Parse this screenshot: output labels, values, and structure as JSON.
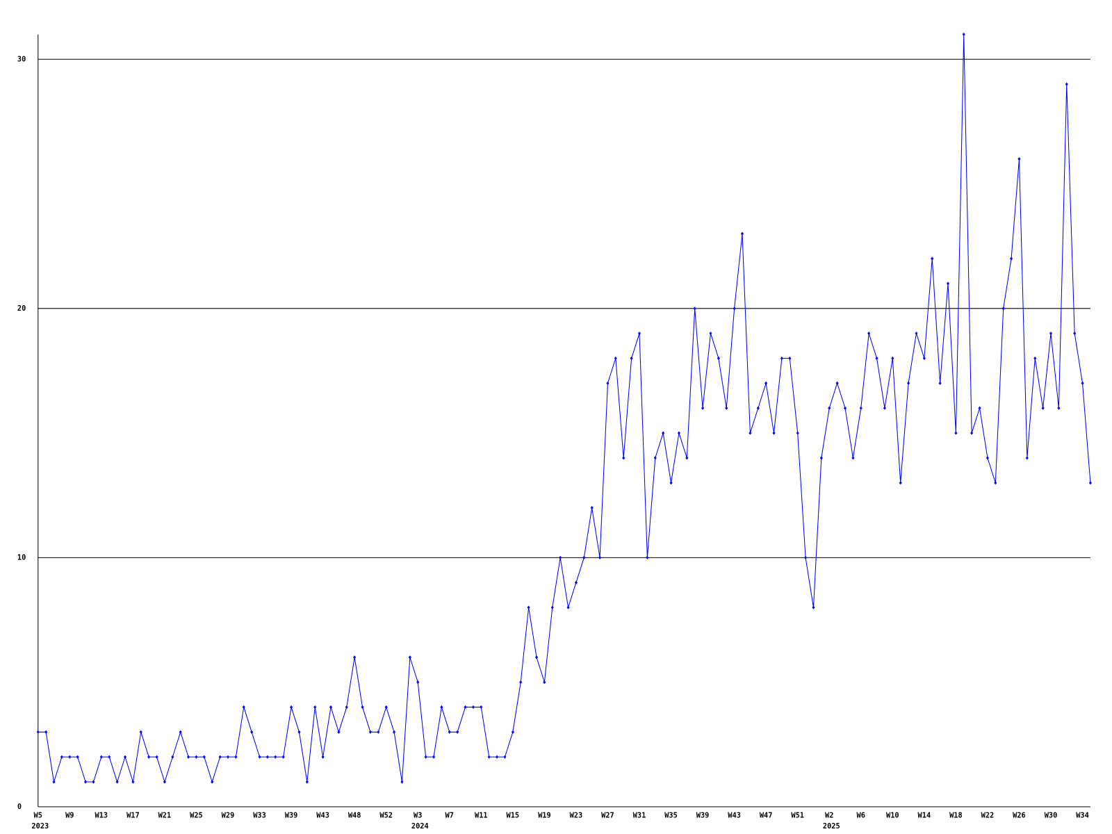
{
  "chart_data": {
    "type": "line",
    "categories": [
      "W5",
      null,
      null,
      null,
      "W9",
      null,
      null,
      null,
      "W13",
      null,
      null,
      null,
      "W17",
      null,
      null,
      null,
      "W21",
      null,
      null,
      null,
      "W25",
      null,
      null,
      null,
      "W29",
      null,
      null,
      null,
      "W33",
      null,
      null,
      null,
      "W39",
      null,
      null,
      null,
      "W43",
      null,
      null,
      null,
      "W48",
      null,
      null,
      null,
      "W52",
      null,
      null,
      null,
      "W3",
      null,
      null,
      null,
      "W7",
      null,
      null,
      null,
      "W11",
      null,
      null,
      null,
      "W15",
      null,
      null,
      null,
      "W19",
      null,
      null,
      null,
      "W23",
      null,
      null,
      null,
      "W27",
      null,
      null,
      null,
      "W31",
      null,
      null,
      null,
      "W35",
      null,
      null,
      null,
      "W39",
      null,
      null,
      null,
      "W43",
      null,
      null,
      null,
      "W47",
      null,
      null,
      null,
      "W51",
      null,
      null,
      null,
      "W2",
      null,
      null,
      null,
      "W6",
      null,
      null,
      null,
      "W10",
      null,
      null,
      null,
      "W14",
      null,
      null,
      null,
      "W18",
      null,
      null,
      null,
      "W22",
      null,
      null,
      null,
      "W26",
      null,
      null,
      null,
      "W30",
      null,
      null,
      null,
      "W34",
      null
    ],
    "category_years": [
      "2023",
      null,
      null,
      null,
      null,
      null,
      null,
      null,
      null,
      null,
      null,
      null,
      null,
      null,
      null,
      null,
      null,
      null,
      null,
      null,
      null,
      null,
      null,
      null,
      null,
      null,
      null,
      null,
      null,
      null,
      null,
      null,
      null,
      null,
      null,
      null,
      null,
      null,
      null,
      null,
      null,
      null,
      null,
      null,
      null,
      null,
      null,
      null,
      "2024",
      null,
      null,
      null,
      null,
      null,
      null,
      null,
      null,
      null,
      null,
      null,
      null,
      null,
      null,
      null,
      null,
      null,
      null,
      null,
      null,
      null,
      null,
      null,
      null,
      null,
      null,
      null,
      null,
      null,
      null,
      null,
      null,
      null,
      null,
      null,
      null,
      null,
      null,
      null,
      null,
      null,
      null,
      null,
      null,
      null,
      null,
      null,
      null,
      null,
      null,
      null,
      "2025",
      null,
      null,
      null,
      null,
      null,
      null,
      null,
      null,
      null,
      null,
      null,
      null,
      null,
      null,
      null,
      null,
      null,
      null,
      null,
      null,
      null,
      null,
      null,
      null,
      null,
      null,
      null,
      null,
      null,
      null,
      null,
      null,
      null
    ],
    "values": [
      3,
      3,
      1,
      2,
      2,
      2,
      1,
      1,
      2,
      2,
      1,
      2,
      1,
      3,
      2,
      2,
      1,
      2,
      3,
      2,
      2,
      2,
      1,
      2,
      2,
      2,
      4,
      3,
      2,
      2,
      2,
      2,
      4,
      3,
      1,
      4,
      2,
      4,
      3,
      4,
      6,
      4,
      3,
      3,
      4,
      3,
      1,
      6,
      5,
      2,
      2,
      4,
      3,
      3,
      4,
      4,
      4,
      2,
      2,
      2,
      3,
      5,
      8,
      6,
      5,
      8,
      10,
      8,
      9,
      10,
      12,
      10,
      17,
      18,
      14,
      18,
      19,
      10,
      14,
      15,
      13,
      15,
      14,
      20,
      16,
      19,
      18,
      16,
      20,
      23,
      15,
      16,
      17,
      15,
      18,
      18,
      15,
      10,
      8,
      14,
      16,
      17,
      16,
      14,
      16,
      19,
      18,
      16,
      18,
      13,
      17,
      19,
      18,
      22,
      17,
      21,
      15,
      31,
      15,
      16,
      14,
      13,
      20,
      22,
      26,
      14,
      18,
      16,
      19,
      16,
      29,
      19,
      17,
      13
    ],
    "color": "#0000ff",
    "ylim": [
      0,
      31
    ],
    "yticks": [
      0,
      10,
      20,
      30
    ],
    "grid": true
  }
}
